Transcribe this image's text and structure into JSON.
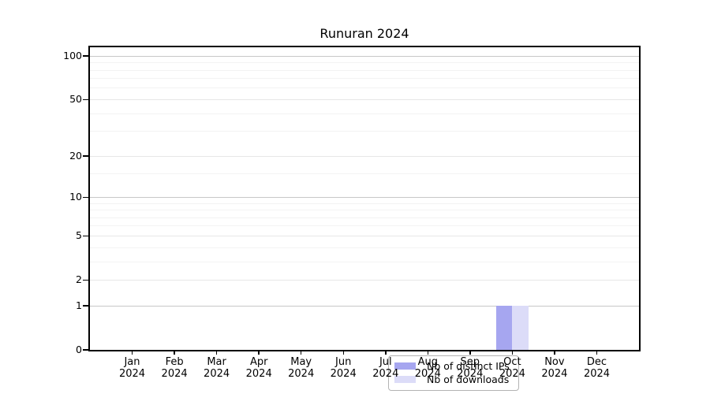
{
  "chart_data": {
    "type": "bar",
    "title": "Runuran 2024",
    "categories": [
      "Jan 2024",
      "Feb 2024",
      "Mar 2024",
      "Apr 2024",
      "May 2024",
      "Jun 2024",
      "Jul 2024",
      "Aug 2024",
      "Sep 2024",
      "Oct 2024",
      "Nov 2024",
      "Dec 2024"
    ],
    "series": [
      {
        "name": "Nb of distinct IPs",
        "color": "#a6a6f0",
        "values": [
          0,
          0,
          0,
          0,
          0,
          0,
          0,
          0,
          0,
          1,
          0,
          0
        ]
      },
      {
        "name": "Nb of downloads",
        "color": "#dcdcf8",
        "values": [
          0,
          0,
          0,
          0,
          0,
          0,
          0,
          0,
          0,
          1,
          0,
          0
        ]
      }
    ],
    "x_axis": {
      "tick_label_lines": 2
    },
    "y_axis": {
      "scale": "log1p",
      "max": 114,
      "ticks": [
        0,
        1,
        2,
        5,
        10,
        20,
        50,
        100
      ],
      "gridlines": {
        "major": [
          1,
          10,
          100
        ],
        "mid": [
          2,
          5,
          20,
          50
        ],
        "minor": [
          3,
          4,
          6,
          7,
          8,
          9,
          15,
          30,
          40,
          60,
          70,
          80,
          90
        ]
      }
    },
    "legend": {
      "position": "bottom-center"
    },
    "colors": {
      "frame": "#000000",
      "background": "#ffffff",
      "gridline_major": "#c7c7c7",
      "gridline_mid": "#e7e7e7",
      "gridline_minor": "#f3f3f3",
      "legend_border": "#b3b3b3"
    }
  }
}
